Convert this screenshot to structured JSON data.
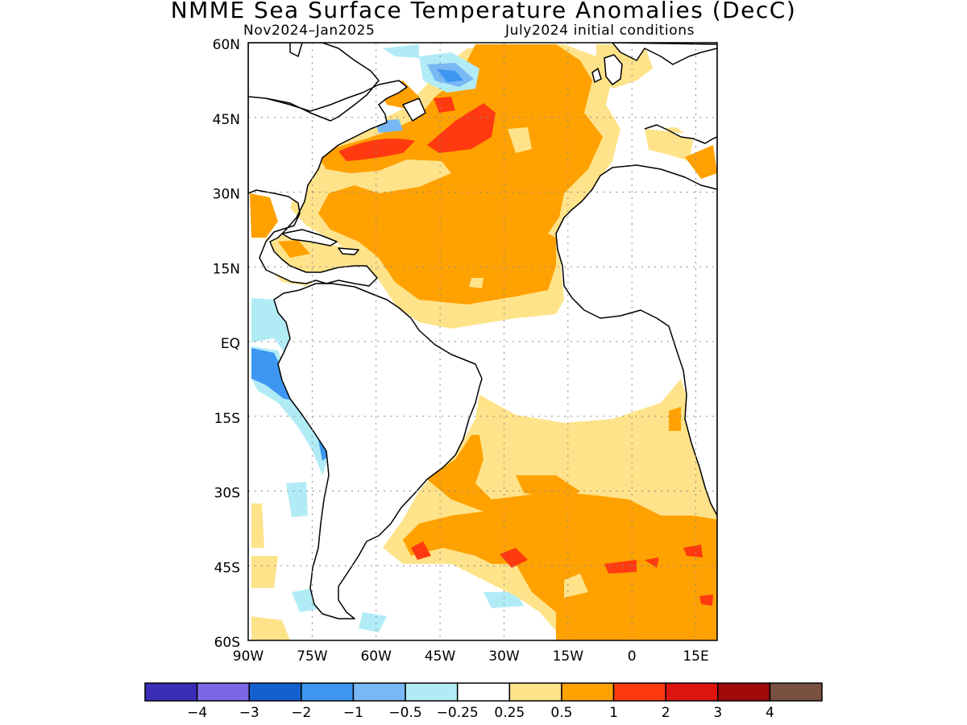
{
  "title": "NMME Sea Surface Temperature Anomalies (DecC)",
  "subtitle_left": "Nov2024–Jan2025",
  "subtitle_right": "July2024 initial conditions",
  "map": {
    "lon_range": [
      -90,
      20
    ],
    "lat_range": [
      -60,
      60
    ],
    "lat_ticks": [
      "60N",
      "45N",
      "30N",
      "15N",
      "EQ",
      "15S",
      "30S",
      "45S",
      "60S"
    ],
    "lon_ticks": [
      "90W",
      "75W",
      "60W",
      "45W",
      "30W",
      "15W",
      "0",
      "15E"
    ],
    "grid": "dotted"
  },
  "colorbar": {
    "colors": [
      "#3b2db6",
      "#7b68e8",
      "#1560d0",
      "#3d96f2",
      "#78b8f5",
      "#b1ecf6",
      "#ffffff",
      "#ffe38a",
      "#ffa100",
      "#ff3a10",
      "#dd140f",
      "#a00a08",
      "#7a5041"
    ],
    "labels": [
      "−4",
      "−3",
      "−2",
      "−1",
      "−0.5",
      "−0.25",
      "0.25",
      "0.5",
      "1",
      "2",
      "3",
      "4"
    ]
  }
}
